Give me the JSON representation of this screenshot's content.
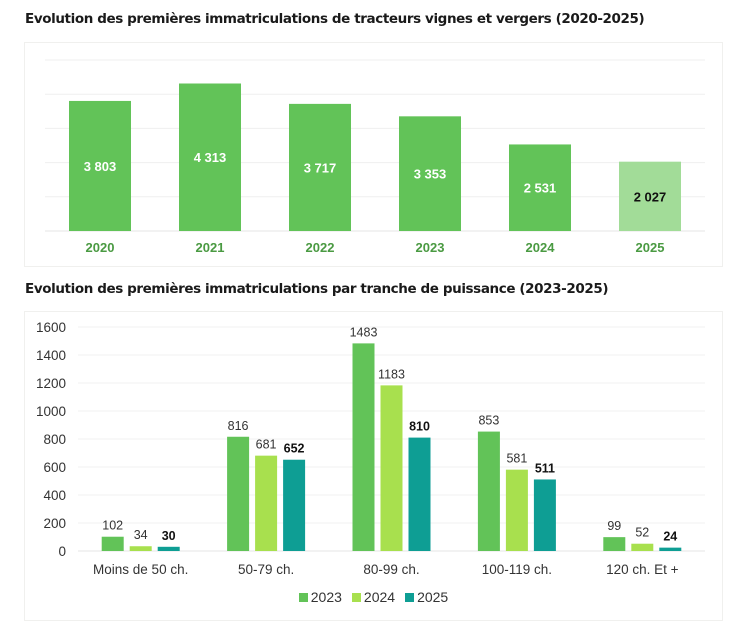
{
  "chart_data": [
    {
      "id": "chart1",
      "type": "bar",
      "title": "Evolution des premières immatriculations de tracteurs vignes et vergers (2020-2025)",
      "categories": [
        "2020",
        "2021",
        "2022",
        "2023",
        "2024",
        "2025"
      ],
      "values": [
        3803,
        4313,
        3717,
        3353,
        2531,
        2027
      ],
      "value_labels": [
        "3 803",
        "4 313",
        "3 717",
        "3 353",
        "2 531",
        "2 027"
      ],
      "bar_colors": [
        "#62c358",
        "#62c358",
        "#62c358",
        "#62c358",
        "#62c358",
        "#a2dc98"
      ],
      "label_colors": [
        "#ffffff",
        "#ffffff",
        "#ffffff",
        "#ffffff",
        "#ffffff",
        "#111111"
      ],
      "category_label_color": "#4a9a42",
      "xlabel": "",
      "ylabel": "",
      "ylim": [
        0,
        5000
      ],
      "grid": true,
      "legend": "none"
    },
    {
      "id": "chart2",
      "type": "bar",
      "title": "Evolution des premières immatriculations par tranche de puissance (2023-2025)",
      "categories": [
        "Moins de 50 ch.",
        "50-79 ch.",
        "80-99 ch.",
        "100-119 ch.",
        "120 ch. Et +"
      ],
      "series": [
        {
          "name": "2023",
          "color": "#62c358",
          "values": [
            102,
            816,
            1483,
            853,
            99
          ]
        },
        {
          "name": "2024",
          "color": "#a8e04e",
          "values": [
            34,
            681,
            1183,
            581,
            52
          ]
        },
        {
          "name": "2025",
          "color": "#0e9e94",
          "values": [
            30,
            652,
            810,
            511,
            24
          ]
        }
      ],
      "yticks": [
        0,
        200,
        400,
        600,
        800,
        1000,
        1200,
        1400,
        1600
      ],
      "xlabel": "",
      "ylabel": "",
      "ylim": [
        0,
        1600
      ],
      "grid": true,
      "legend": "bottom"
    }
  ]
}
